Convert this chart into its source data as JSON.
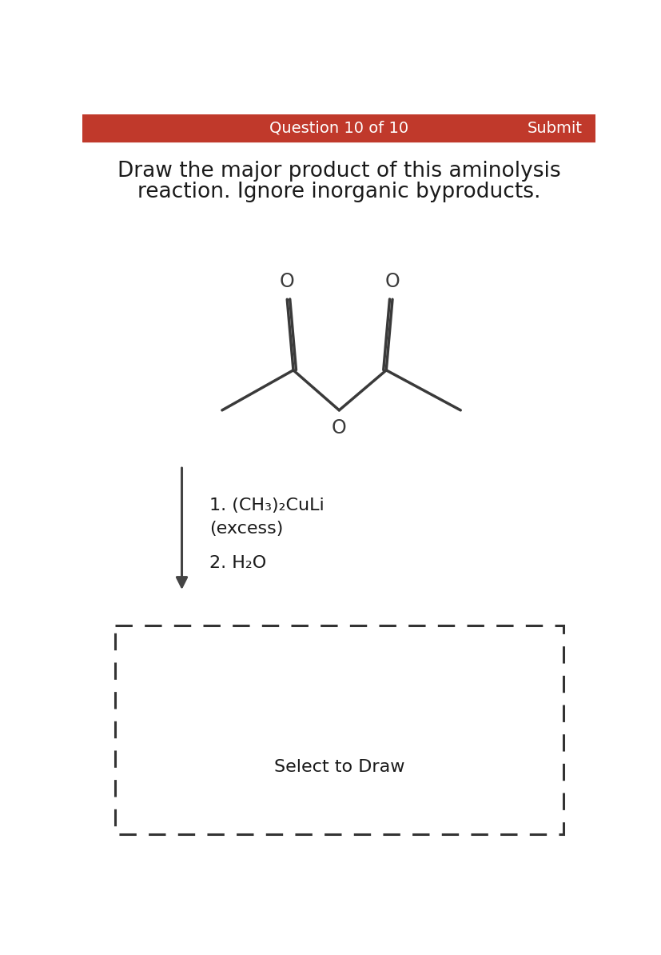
{
  "background_color": "#ffffff",
  "header_color": "#c0392b",
  "header_text": "Question 10 of 10",
  "header_submit": "Submit",
  "title_line1": "Draw the major product of this aminolysis",
  "title_line2": "reaction. Ignore inorganic byproducts.",
  "title_fontsize": 19,
  "title_color": "#1a1a1a",
  "mol_color": "#3a3a3a",
  "mol_linewidth": 2.5,
  "reagent_line1": "1. (CH₃)₂CuLi",
  "reagent_line2": "(excess)",
  "reagent_line3": "2. H₂O",
  "reagent_fontsize": 16,
  "select_text": "Select to Draw",
  "select_fontsize": 16,
  "arrow_color": "#444444",
  "dashed_box_color": "#333333",
  "o_fontsize": 17
}
